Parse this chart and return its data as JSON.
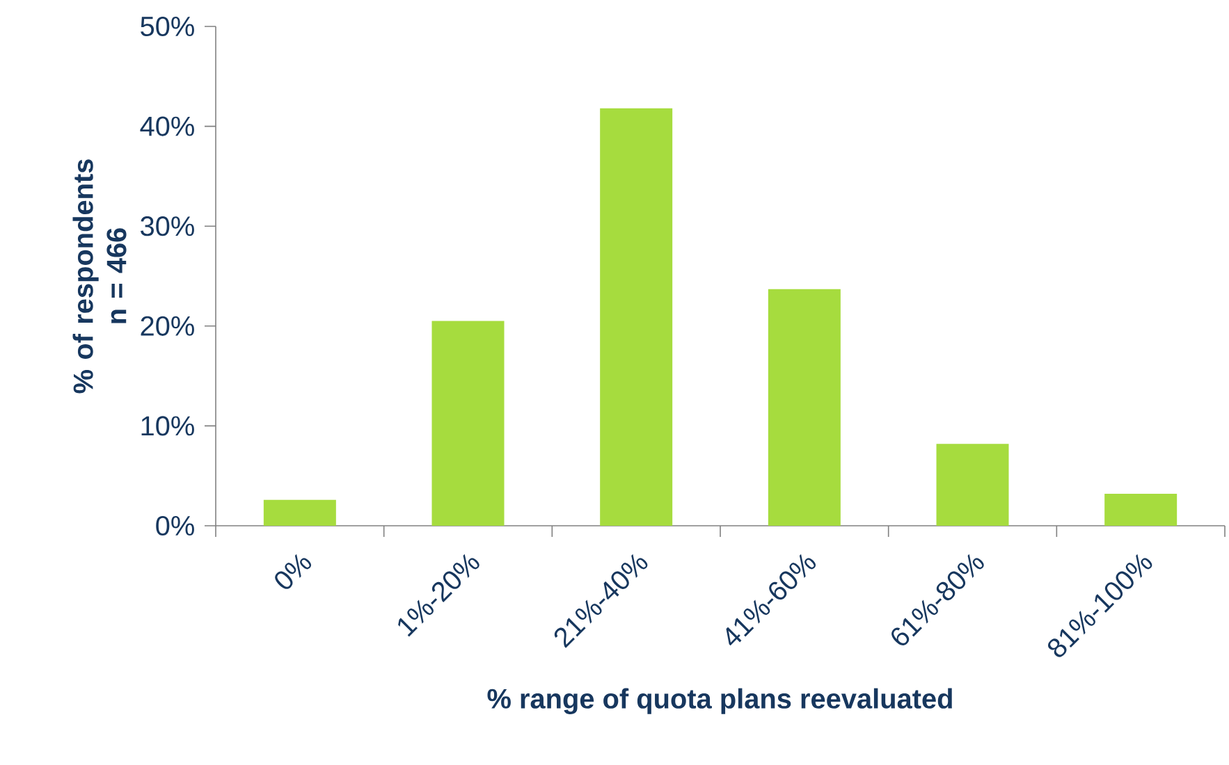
{
  "chart_data": {
    "type": "bar",
    "xlabel": "% range of quota plans reevaluated",
    "ylabel": "% of respondents n = 466",
    "categories": [
      "0%",
      "1%-20%",
      "21%-40%",
      "41%-60%",
      "61%-80%",
      "81%-100%"
    ],
    "values": [
      2.6,
      20.5,
      41.8,
      23.7,
      8.2,
      3.2
    ],
    "color": "#a6dc3e",
    "ylim": [
      0,
      50
    ],
    "yticks": [
      {
        "value": 0,
        "label": "0%"
      },
      {
        "value": 10,
        "label": "10%"
      },
      {
        "value": 20,
        "label": "20%"
      },
      {
        "value": 30,
        "label": "30%"
      },
      {
        "value": 40,
        "label": "40%"
      },
      {
        "value": 50,
        "label": "50%"
      }
    ]
  }
}
